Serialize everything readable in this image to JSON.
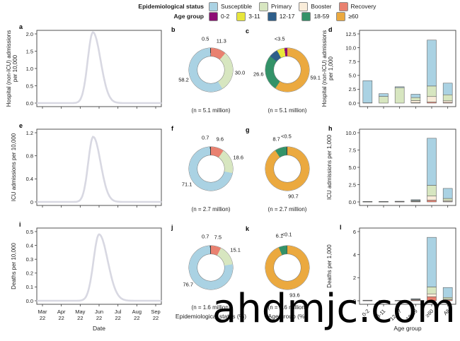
{
  "watermark": "ahdmjc.com",
  "colors": {
    "susceptible": "#aad2e3",
    "primary": "#d7e6c0",
    "booster": "#f9ecd9",
    "recovery": "#e98170",
    "age_0_2": "#8e0c74",
    "age_3_11": "#e7e63b",
    "age_12_17": "#2e5e8a",
    "age_18_59": "#339268",
    "age_ge60": "#eba93f",
    "tiny": "#3a3a3a",
    "line": "#d8d8e2",
    "axis": "#3f3f3f",
    "bar_stroke": "#5a5a5a"
  },
  "legend": {
    "epi": {
      "title": "Epidemiological status",
      "items": [
        {
          "label": "Susceptible",
          "color_key": "susceptible"
        },
        {
          "label": "Primary",
          "color_key": "primary"
        },
        {
          "label": "Booster",
          "color_key": "booster"
        },
        {
          "label": "Recovery",
          "color_key": "recovery"
        }
      ]
    },
    "age": {
      "title": "Age group",
      "items": [
        {
          "label": "0-2",
          "color_key": "age_0_2"
        },
        {
          "label": "3-11",
          "color_key": "age_3_11"
        },
        {
          "label": "12-17",
          "color_key": "age_12_17"
        },
        {
          "label": "18-59",
          "color_key": "age_18_59"
        },
        {
          "label": "≥60",
          "color_key": "age_ge60"
        }
      ]
    }
  },
  "footers": {
    "date": "Date",
    "epi_pct": "Epidemiological status (%)",
    "age_pct": "Age group (%)",
    "age_group": "Age group"
  },
  "chart_data": [
    {
      "panel": "a",
      "type": "line",
      "ylabel": "Hospital (non-ICU) admissions\nper 10,000",
      "ytick_labels": [
        "0.0",
        "0.5",
        "1.0",
        "1.5",
        "2.0"
      ],
      "ytick_values": [
        0,
        0.5,
        1,
        1.5,
        2
      ],
      "ymax": 2.0,
      "x_categories": [
        "Mar 22",
        "Apr 22",
        "May 22",
        "Jun 22",
        "Jul 22",
        "Aug 22",
        "Sep 22"
      ],
      "show_x_labels": false,
      "peak": 2.05,
      "peak_x": 0.45,
      "sigma_l": 0.042,
      "sigma_r": 0.062
    },
    {
      "panel": "b",
      "type": "donut",
      "caption": "(n = 5.1 million)",
      "segments": [
        {
          "name": "Recovery",
          "value": 11.3,
          "color_key": "recovery"
        },
        {
          "name": "Primary",
          "value": 30.0,
          "color_key": "primary"
        },
        {
          "name": "Susceptible",
          "value": 58.2,
          "color_key": "susceptible"
        },
        {
          "name": "Booster",
          "value": 0.5,
          "color_key": "tiny"
        }
      ],
      "labels": [
        {
          "text": "0.5",
          "angle": -10,
          "m": 1.45
        },
        {
          "text": "11.3",
          "angle": 20,
          "m": 1.4
        },
        {
          "text": "30.0",
          "angle": 95,
          "m": 1.33
        },
        {
          "text": "58.2",
          "angle": 250,
          "m": 1.32
        }
      ]
    },
    {
      "panel": "c",
      "type": "donut",
      "caption": "(n = 5.1 million)",
      "segments": [
        {
          "name": "≥60",
          "value": 59.1,
          "color_key": "age_ge60"
        },
        {
          "name": "18-59",
          "value": 26.6,
          "color_key": "age_18_59"
        },
        {
          "name": "12-17",
          "value": 6.6,
          "color_key": "age_12_17"
        },
        {
          "name": "3-11",
          "value": 5.5,
          "color_key": "age_3_11"
        },
        {
          "name": "0-2",
          "value": 2.2,
          "color_key": "age_0_2"
        }
      ],
      "labels": [
        {
          "text": "<3.5",
          "angle": -14,
          "m": 1.45
        },
        {
          "text": "59.1",
          "angle": 106,
          "m": 1.33
        },
        {
          "text": "26.6",
          "angle": 261,
          "m": 1.33
        }
      ]
    },
    {
      "panel": "d",
      "type": "stacked_bar",
      "ylabel": "Hospital (non-ICU) admissions\nper 1,000",
      "ytick_labels": [
        "0.0",
        "2.5",
        "5.0",
        "7.5",
        "10.0",
        "12.5"
      ],
      "ytick_values": [
        0,
        2.5,
        5,
        7.5,
        10,
        12.5
      ],
      "ymax": 12.5,
      "categories": [
        "0-2",
        "3-11",
        "12-17",
        "18-59",
        "≥60",
        "All"
      ],
      "rotate_x_labels": false,
      "series": [
        {
          "name": "Recovery",
          "color_key": "recovery",
          "values": [
            0,
            0,
            0,
            0.07,
            0.18,
            0.1
          ]
        },
        {
          "name": "Booster",
          "color_key": "booster",
          "values": [
            0,
            0,
            0,
            0.38,
            1.0,
            0.3
          ]
        },
        {
          "name": "Primary",
          "color_key": "primary",
          "values": [
            0.05,
            1.2,
            2.8,
            0.55,
            1.9,
            1.1
          ]
        },
        {
          "name": "Susceptible",
          "color_key": "susceptible",
          "values": [
            4.0,
            0.5,
            0.15,
            0.6,
            8.3,
            2.1
          ]
        }
      ]
    },
    {
      "panel": "e",
      "type": "line",
      "ylabel": "ICU admissions per 10,000",
      "ytick_labels": [
        "0",
        "0.4",
        "0.8",
        "1.2"
      ],
      "ytick_values": [
        0,
        0.4,
        0.8,
        1.2
      ],
      "ymax": 1.2,
      "x_categories": [
        "Mar 22",
        "Apr 22",
        "May 22",
        "Jun 22",
        "Jul 22",
        "Aug 22",
        "Sep 22"
      ],
      "show_x_labels": false,
      "peak": 1.13,
      "peak_x": 0.452,
      "sigma_l": 0.04,
      "sigma_r": 0.06
    },
    {
      "panel": "f",
      "type": "donut",
      "caption": "(n = 2.7 million)",
      "segments": [
        {
          "name": "Recovery",
          "value": 9.6,
          "color_key": "recovery"
        },
        {
          "name": "Primary",
          "value": 18.6,
          "color_key": "primary"
        },
        {
          "name": "Susceptible",
          "value": 71.1,
          "color_key": "susceptible"
        },
        {
          "name": "Booster",
          "value": 0.7,
          "color_key": "tiny"
        }
      ],
      "labels": [
        {
          "text": "0.7",
          "angle": -10,
          "m": 1.45
        },
        {
          "text": "9.6",
          "angle": 17,
          "m": 1.42
        },
        {
          "text": "18.6",
          "angle": 68,
          "m": 1.35
        },
        {
          "text": "71.1",
          "angle": 237,
          "m": 1.3
        }
      ]
    },
    {
      "panel": "g",
      "type": "donut",
      "caption": "(n = 2.7 million)",
      "segments": [
        {
          "name": "≥60",
          "value": 90.7,
          "color_key": "age_ge60"
        },
        {
          "name": "18-59",
          "value": 8.7,
          "color_key": "age_18_59"
        },
        {
          "name": "0-2/3-11/12-17",
          "value": 0.6,
          "color_key": "tiny"
        }
      ],
      "labels": [
        {
          "text": "<0.5",
          "angle": -2,
          "m": 1.5
        },
        {
          "text": "8.7",
          "angle": -20,
          "m": 1.45
        },
        {
          "text": "90.7",
          "angle": 168,
          "m": 1.3
        }
      ]
    },
    {
      "panel": "h",
      "type": "stacked_bar",
      "ylabel": "ICU admissions per 1,000",
      "ytick_labels": [
        "0.0",
        "2.5",
        "5.0",
        "7.5",
        "10.0"
      ],
      "ytick_values": [
        0,
        2.5,
        5,
        7.5,
        10
      ],
      "ymax": 10,
      "categories": [
        "0-2",
        "3-11",
        "12-17",
        "18-59",
        "≥60",
        "All"
      ],
      "rotate_x_labels": false,
      "series": [
        {
          "name": "Recovery",
          "color_key": "recovery",
          "values": [
            0.02,
            0.02,
            0.03,
            0.06,
            0.25,
            0.05
          ]
        },
        {
          "name": "Booster",
          "color_key": "booster",
          "values": [
            0,
            0,
            0,
            0.08,
            0.6,
            0.15
          ]
        },
        {
          "name": "Primary",
          "color_key": "primary",
          "values": [
            0.02,
            0.02,
            0.03,
            0.08,
            1.55,
            0.3
          ]
        },
        {
          "name": "Susceptible",
          "color_key": "susceptible",
          "values": [
            0.03,
            0.03,
            0.04,
            0.1,
            6.8,
            1.45
          ]
        }
      ]
    },
    {
      "panel": "i",
      "type": "line",
      "ylabel": "Deaths per 10,000",
      "ytick_labels": [
        "0.0",
        "0.1",
        "0.2",
        "0.3",
        "0.4",
        "0.5"
      ],
      "ytick_values": [
        0,
        0.1,
        0.2,
        0.3,
        0.4,
        0.5
      ],
      "ymax": 0.5,
      "x_categories": [
        "Mar 22",
        "Apr 22",
        "May 22",
        "Jun 22",
        "Jul 22",
        "Aug 22",
        "Sep 22"
      ],
      "show_x_labels": true,
      "peak": 0.48,
      "peak_x": 0.5,
      "sigma_l": 0.045,
      "sigma_r": 0.07
    },
    {
      "panel": "j",
      "type": "donut",
      "caption": "(n = 1.6 million)",
      "segments": [
        {
          "name": "Recovery",
          "value": 7.5,
          "color_key": "recovery"
        },
        {
          "name": "Primary",
          "value": 15.1,
          "color_key": "primary"
        },
        {
          "name": "Susceptible",
          "value": 76.7,
          "color_key": "susceptible"
        },
        {
          "name": "Booster",
          "value": 0.7,
          "color_key": "tiny"
        }
      ],
      "labels": [
        {
          "text": "0.7",
          "angle": -10,
          "m": 1.45
        },
        {
          "text": "7.5",
          "angle": 13,
          "m": 1.42
        },
        {
          "text": "15.1",
          "angle": 54,
          "m": 1.38
        },
        {
          "text": "76.7",
          "angle": 233,
          "m": 1.3
        }
      ]
    },
    {
      "panel": "k",
      "type": "donut",
      "caption": "(n = 1.6 million)",
      "segments": [
        {
          "name": "≥60",
          "value": 93.6,
          "color_key": "age_ge60"
        },
        {
          "name": "18-59",
          "value": 6.1,
          "color_key": "age_18_59"
        },
        {
          "name": "0-2/3-11/12-17",
          "value": 0.3,
          "color_key": "tiny"
        }
      ],
      "labels": [
        {
          "text": "<0.1",
          "angle": -1,
          "m": 1.53
        },
        {
          "text": "6.1",
          "angle": -14,
          "m": 1.48
        },
        {
          "text": "93.6",
          "angle": 165,
          "m": 1.3
        }
      ]
    },
    {
      "panel": "l",
      "type": "stacked_bar",
      "ylabel": "Deaths per 1,000",
      "ytick_labels": [
        "0",
        "2",
        "4",
        "6"
      ],
      "ytick_values": [
        0,
        2,
        4,
        6
      ],
      "ymax": 6,
      "categories": [
        "0-2",
        "3-11",
        "12-17",
        "18-59",
        "≥60",
        "All"
      ],
      "rotate_x_labels": true,
      "series": [
        {
          "name": "Recovery",
          "color_key": "recovery",
          "values": [
            0.02,
            0.01,
            0.01,
            0.06,
            0.35,
            0.08
          ]
        },
        {
          "name": "Booster",
          "color_key": "booster",
          "values": [
            0,
            0,
            0,
            0.03,
            0.25,
            0.06
          ]
        },
        {
          "name": "Primary",
          "color_key": "primary",
          "values": [
            0.01,
            0.01,
            0.01,
            0.04,
            0.6,
            0.15
          ]
        },
        {
          "name": "Susceptible",
          "color_key": "susceptible",
          "values": [
            0.02,
            0.01,
            0.01,
            0.05,
            4.3,
            0.86
          ]
        }
      ]
    }
  ]
}
